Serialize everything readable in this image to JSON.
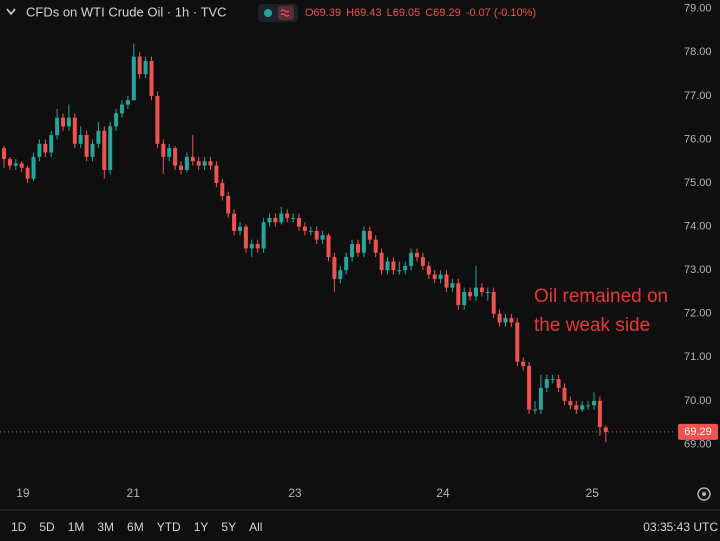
{
  "chart_data": {
    "type": "candlestick",
    "title": "CFDs on WTI Crude Oil · 1h · TVC",
    "ohlc_text": [
      "O69.39",
      "H69.43",
      "L69.05",
      "C69.29",
      "-0.07 (-0.10%)"
    ],
    "up_color": "#26a69a",
    "down_color": "#ef5350",
    "ylim": [
      68.3,
      79.2
    ],
    "yticks": [
      {
        "value": 69,
        "label": "69.00"
      },
      {
        "value": 70,
        "label": "70.00"
      },
      {
        "value": 71,
        "label": "71.00"
      },
      {
        "value": 72,
        "label": "72.00"
      },
      {
        "value": 73,
        "label": "73.00"
      },
      {
        "value": 74,
        "label": "74.00"
      },
      {
        "value": 75,
        "label": "75.00"
      },
      {
        "value": 76,
        "label": "76.00"
      },
      {
        "value": 77,
        "label": "77.00"
      },
      {
        "value": 78,
        "label": "78.00"
      },
      {
        "value": 79,
        "label": "79.00"
      }
    ],
    "xlim": [
      -0.68,
      113.9
    ],
    "xticks": [
      {
        "value": 3.2,
        "label": "19"
      },
      {
        "value": 21.9,
        "label": "21"
      },
      {
        "value": 49.3,
        "label": "23"
      },
      {
        "value": 74.4,
        "label": "24"
      },
      {
        "value": 99.7,
        "label": "25"
      }
    ],
    "grid": false,
    "last_price": {
      "value": 69.29,
      "label": "69.29"
    },
    "annotation": [
      "Oil remained on",
      "the weak side"
    ],
    "annotation_color": "#e53935",
    "ohlc": [
      [
        75.8,
        75.85,
        75.35,
        75.55
      ],
      [
        75.55,
        75.6,
        75.3,
        75.4
      ],
      [
        75.4,
        75.55,
        75.3,
        75.45
      ],
      [
        75.45,
        75.5,
        75.25,
        75.35
      ],
      [
        75.35,
        75.4,
        75.0,
        75.1
      ],
      [
        75.1,
        75.7,
        75.05,
        75.6
      ],
      [
        75.6,
        76.0,
        75.5,
        75.9
      ],
      [
        75.9,
        76.0,
        75.6,
        75.7
      ],
      [
        75.7,
        76.2,
        75.6,
        76.1
      ],
      [
        76.1,
        76.7,
        76.0,
        76.5
      ],
      [
        76.5,
        76.6,
        76.2,
        76.3
      ],
      [
        76.3,
        76.8,
        76.2,
        76.5
      ],
      [
        76.5,
        76.6,
        75.8,
        75.9
      ],
      [
        75.9,
        76.3,
        75.8,
        76.1
      ],
      [
        76.1,
        76.2,
        75.5,
        75.6
      ],
      [
        75.6,
        76.0,
        75.5,
        75.9
      ],
      [
        75.9,
        76.4,
        75.8,
        76.2
      ],
      [
        76.2,
        76.3,
        75.1,
        75.3
      ],
      [
        75.3,
        76.4,
        75.2,
        76.3
      ],
      [
        76.3,
        76.7,
        76.2,
        76.6
      ],
      [
        76.6,
        76.9,
        76.5,
        76.8
      ],
      [
        76.8,
        77.0,
        76.7,
        76.9
      ],
      [
        76.9,
        78.2,
        76.9,
        77.9
      ],
      [
        77.9,
        78.0,
        77.4,
        77.5
      ],
      [
        77.5,
        77.9,
        77.4,
        77.8
      ],
      [
        77.8,
        77.9,
        76.9,
        77.0
      ],
      [
        77.0,
        77.1,
        75.8,
        75.9
      ],
      [
        75.9,
        76.0,
        75.2,
        75.6
      ],
      [
        75.6,
        75.9,
        75.5,
        75.8
      ],
      [
        75.8,
        75.85,
        75.3,
        75.4
      ],
      [
        75.4,
        75.5,
        75.2,
        75.3
      ],
      [
        75.3,
        75.7,
        75.25,
        75.6
      ],
      [
        75.6,
        76.1,
        75.4,
        75.5
      ],
      [
        75.5,
        75.6,
        75.3,
        75.4
      ],
      [
        75.4,
        75.6,
        75.3,
        75.5
      ],
      [
        75.5,
        75.6,
        75.3,
        75.4
      ],
      [
        75.4,
        75.5,
        74.9,
        75.0
      ],
      [
        75.0,
        75.1,
        74.6,
        74.7
      ],
      [
        74.7,
        74.8,
        74.2,
        74.3
      ],
      [
        74.3,
        74.4,
        73.8,
        73.9
      ],
      [
        73.9,
        74.1,
        73.8,
        74.0
      ],
      [
        74.0,
        74.05,
        73.4,
        73.5
      ],
      [
        73.5,
        73.7,
        73.3,
        73.6
      ],
      [
        73.6,
        73.7,
        73.4,
        73.5
      ],
      [
        73.5,
        74.2,
        73.4,
        74.1
      ],
      [
        74.1,
        74.3,
        74.0,
        74.2
      ],
      [
        74.2,
        74.3,
        74.0,
        74.1
      ],
      [
        74.1,
        74.45,
        74.05,
        74.3
      ],
      [
        74.3,
        74.4,
        74.1,
        74.2
      ],
      [
        74.2,
        74.3,
        74.1,
        74.2
      ],
      [
        74.2,
        74.3,
        73.9,
        74.0
      ],
      [
        74.0,
        74.1,
        73.8,
        73.9
      ],
      [
        73.9,
        74.0,
        73.8,
        73.9
      ],
      [
        73.9,
        74.0,
        73.6,
        73.7
      ],
      [
        73.7,
        73.9,
        73.6,
        73.8
      ],
      [
        73.8,
        73.85,
        73.2,
        73.3
      ],
      [
        73.3,
        73.4,
        72.5,
        72.8
      ],
      [
        72.8,
        73.1,
        72.7,
        73.0
      ],
      [
        73.0,
        73.4,
        72.9,
        73.3
      ],
      [
        73.3,
        73.7,
        73.2,
        73.6
      ],
      [
        73.6,
        73.7,
        73.3,
        73.4
      ],
      [
        73.4,
        74.0,
        73.3,
        73.9
      ],
      [
        73.9,
        74.0,
        73.6,
        73.7
      ],
      [
        73.7,
        73.8,
        73.3,
        73.4
      ],
      [
        73.4,
        73.5,
        72.9,
        73.0
      ],
      [
        73.0,
        73.3,
        72.9,
        73.2
      ],
      [
        73.2,
        73.3,
        72.9,
        73.0
      ],
      [
        73.0,
        73.2,
        72.9,
        73.0
      ],
      [
        73.0,
        73.2,
        72.9,
        73.1
      ],
      [
        73.1,
        73.5,
        73.0,
        73.4
      ],
      [
        73.4,
        73.5,
        73.2,
        73.3
      ],
      [
        73.3,
        73.4,
        73.0,
        73.1
      ],
      [
        73.1,
        73.2,
        72.8,
        72.9
      ],
      [
        72.9,
        73.0,
        72.7,
        72.8
      ],
      [
        72.8,
        73.0,
        72.7,
        72.9
      ],
      [
        72.9,
        73.0,
        72.5,
        72.6
      ],
      [
        72.6,
        72.8,
        72.5,
        72.7
      ],
      [
        72.7,
        72.8,
        72.1,
        72.2
      ],
      [
        72.2,
        72.6,
        72.1,
        72.5
      ],
      [
        72.5,
        72.6,
        72.3,
        72.4
      ],
      [
        72.4,
        73.1,
        72.3,
        72.6
      ],
      [
        72.6,
        72.7,
        72.4,
        72.5
      ],
      [
        72.5,
        72.6,
        72.3,
        72.5
      ],
      [
        72.5,
        72.6,
        71.9,
        72.0
      ],
      [
        72.0,
        72.1,
        71.7,
        71.8
      ],
      [
        71.8,
        72.0,
        71.7,
        71.9
      ],
      [
        71.9,
        72.0,
        71.7,
        71.8
      ],
      [
        71.8,
        71.9,
        70.8,
        70.9
      ],
      [
        70.9,
        71.0,
        70.7,
        70.8
      ],
      [
        70.8,
        70.9,
        69.7,
        69.8
      ],
      [
        69.8,
        70.0,
        69.7,
        69.8
      ],
      [
        69.8,
        70.6,
        69.7,
        70.3
      ],
      [
        70.3,
        70.6,
        70.2,
        70.5
      ],
      [
        70.5,
        70.6,
        70.4,
        70.5
      ],
      [
        70.5,
        70.6,
        70.2,
        70.3
      ],
      [
        70.3,
        70.4,
        69.9,
        70.0
      ],
      [
        70.0,
        70.1,
        69.8,
        69.9
      ],
      [
        69.9,
        70.0,
        69.7,
        69.8
      ],
      [
        69.8,
        70.0,
        69.75,
        69.9
      ],
      [
        69.9,
        70.0,
        69.8,
        69.9
      ],
      [
        69.9,
        70.2,
        69.8,
        70.0
      ],
      [
        70.0,
        70.1,
        69.2,
        69.4
      ],
      [
        69.39,
        69.43,
        69.05,
        69.29
      ]
    ]
  },
  "toolbar": {
    "ranges": [
      "1D",
      "5D",
      "1M",
      "3M",
      "6M",
      "YTD",
      "1Y",
      "5Y",
      "All"
    ],
    "clock": "03:35:43 UTC"
  }
}
